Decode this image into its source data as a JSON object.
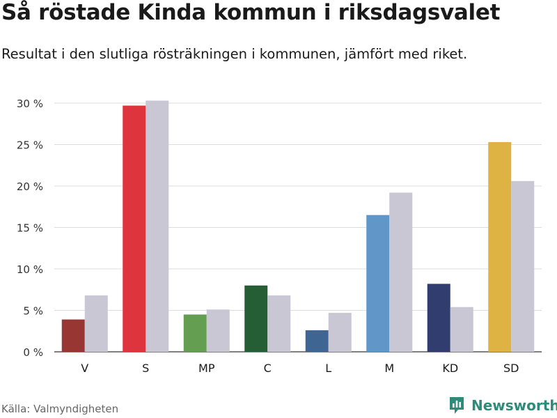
{
  "title": "Så röstade Kinda kommun i riksdagsvalet",
  "subtitle": "Resultat i den slutliga rösträkningen i kommunen, jämfört med riket.",
  "source": "Källa: Valmyndigheten",
  "brand": {
    "name": "Newsworthy",
    "icon": "newsworthy-logo-icon",
    "color": "#2e8b7a"
  },
  "chart_data": {
    "type": "bar",
    "categories": [
      "V",
      "S",
      "MP",
      "C",
      "L",
      "M",
      "KD",
      "SD"
    ],
    "series": [
      {
        "values": [
          3.9,
          29.7,
          4.5,
          8.0,
          2.6,
          16.5,
          8.2,
          25.3
        ],
        "colors": [
          "#973633",
          "#dd343d",
          "#649e51",
          "#255e34",
          "#3f6693",
          "#6196c8",
          "#313c6f",
          "#deb344"
        ]
      },
      {
        "values": [
          6.8,
          30.3,
          5.1,
          6.8,
          4.7,
          19.2,
          5.4,
          20.6
        ],
        "color": "#c8c7d3"
      }
    ],
    "y_ticks": [
      "0 %",
      "5 %",
      "10 %",
      "15 %",
      "20 %",
      "25 %",
      "30 %"
    ],
    "ylim": [
      0,
      30
    ],
    "grid": true
  }
}
